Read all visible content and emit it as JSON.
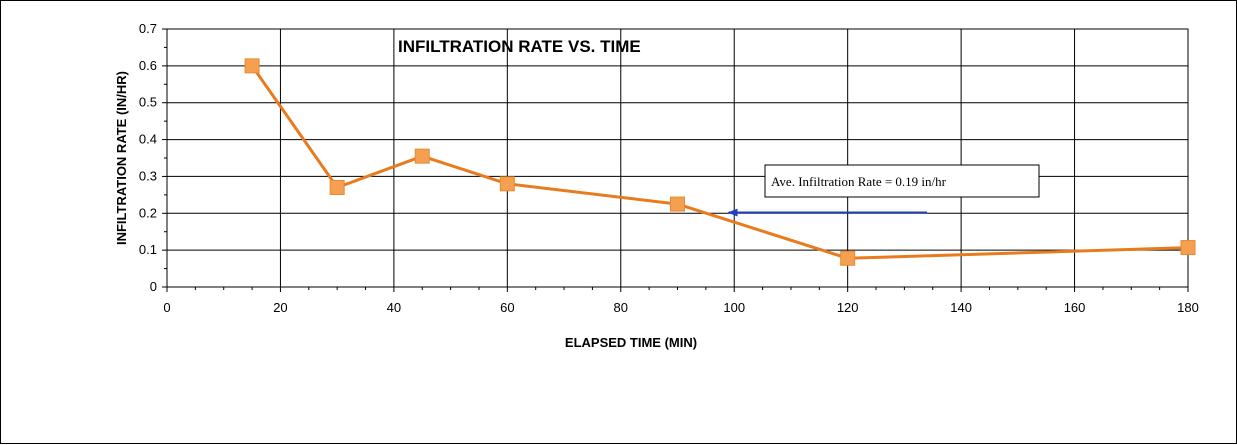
{
  "chart_data": {
    "type": "line",
    "title": "INFILTRATION RATE VS. TIME",
    "xlabel": "ELAPSED TIME (MIN)",
    "ylabel": "INFILTRATION RATE (IN/HR)",
    "xlim": [
      0,
      180
    ],
    "ylim": [
      0,
      0.7
    ],
    "x_ticks": [
      0,
      20,
      40,
      60,
      80,
      100,
      120,
      140,
      160,
      180
    ],
    "y_ticks": [
      0,
      0.1,
      0.2,
      0.3,
      0.4,
      0.5,
      0.6,
      0.7
    ],
    "x_tick_labels": [
      "0",
      "20",
      "40",
      "60",
      "80",
      "100",
      "120",
      "140",
      "160",
      "180"
    ],
    "y_tick_labels": [
      "0",
      "0.1",
      "0.2",
      "0.3",
      "0.4",
      "0.5",
      "0.6",
      "0.7"
    ],
    "grid": true,
    "series": [
      {
        "x": [
          15,
          30,
          45,
          60,
          90,
          120,
          180
        ],
        "y": [
          0.6,
          0.27,
          0.355,
          0.28,
          0.225,
          0.078,
          0.107
        ],
        "color": "#e87b1e",
        "marker_color": "#f4a050",
        "marker": "square"
      }
    ],
    "annotation": {
      "text": "Ave. Infiltration Rate = 0.19 in/hr",
      "arrow_tail": [
        134,
        0.202
      ],
      "arrow_head": [
        99,
        0.202
      ],
      "arrow_color": "#1f3fbf"
    }
  }
}
